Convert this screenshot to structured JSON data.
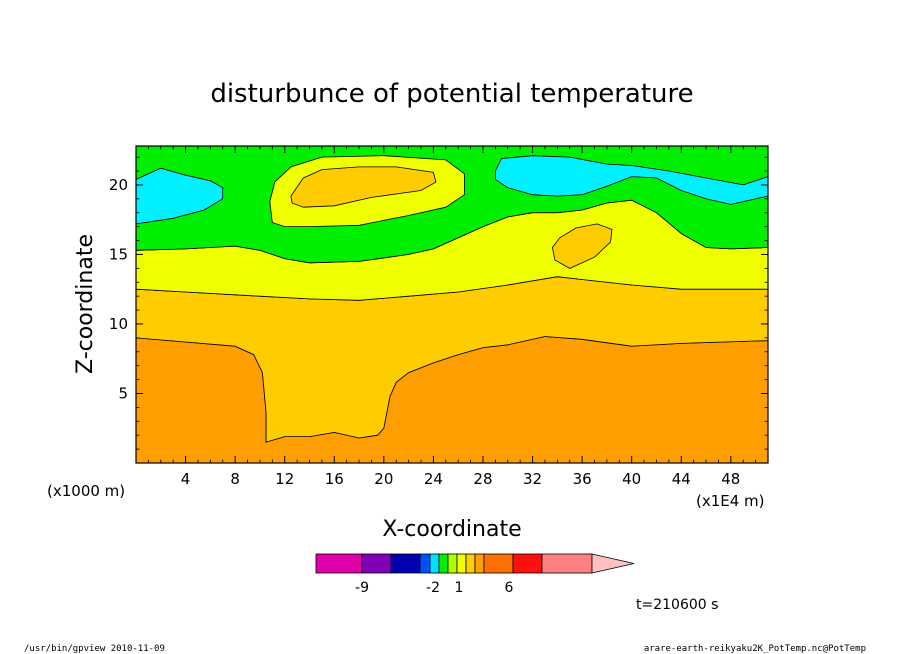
{
  "chart_data": {
    "type": "contour",
    "title": "disturbunce of potential temperature",
    "xlabel": "X-coordinate",
    "ylabel": "Z-coordinate",
    "x_unit": "(x1E4 m)",
    "y_unit": "(x1000 m)",
    "xlim": [
      0,
      51
    ],
    "ylim": [
      0,
      22.8
    ],
    "x_ticks": [
      4,
      8,
      12,
      16,
      20,
      24,
      28,
      32,
      36,
      40,
      44,
      48
    ],
    "y_ticks": [
      5,
      10,
      15,
      20
    ],
    "grid": false,
    "time_label": "t=210600 s",
    "colorbar": {
      "colors": [
        "#e000a8",
        "#8000b8",
        "#0000b0",
        "#0050ff",
        "#00e0ff",
        "#00f000",
        "#b0ff00",
        "#f0ff00",
        "#ffd000",
        "#ffa000",
        "#ff7000",
        "#ff1010",
        "#ff8080",
        "#ffc0c0"
      ],
      "labels": [
        {
          "text": "-9",
          "level": -9
        },
        {
          "text": "-2",
          "level": -2
        },
        {
          "text": "1",
          "level": 1
        },
        {
          "text": "6",
          "level": 6
        }
      ]
    },
    "regions": [
      {
        "name": "bottom-orange",
        "color": "#ff9e00",
        "points": [
          [
            0,
            0
          ],
          [
            51,
            0
          ],
          [
            51,
            8.8
          ],
          [
            44,
            8.6
          ],
          [
            40,
            8.4
          ],
          [
            36,
            8.9
          ],
          [
            33,
            9.1
          ],
          [
            30,
            8.5
          ],
          [
            28,
            8.3
          ],
          [
            26,
            7.8
          ],
          [
            24,
            7.2
          ],
          [
            22,
            6.5
          ],
          [
            21,
            5.8
          ],
          [
            20.5,
            4.8
          ],
          [
            20,
            2.5
          ],
          [
            19.5,
            2.0
          ],
          [
            18,
            1.8
          ],
          [
            16,
            2.2
          ],
          [
            14,
            1.9
          ],
          [
            12,
            1.9
          ],
          [
            10.5,
            1.5
          ],
          [
            10.5,
            3.6
          ],
          [
            10.2,
            6.5
          ],
          [
            9.5,
            7.8
          ],
          [
            8,
            8.4
          ],
          [
            4,
            8.7
          ],
          [
            0,
            9.0
          ]
        ]
      },
      {
        "name": "middle-gold",
        "color": "#ffcc00",
        "points": [
          [
            0,
            9.0
          ],
          [
            4,
            8.7
          ],
          [
            8,
            8.4
          ],
          [
            9.5,
            7.8
          ],
          [
            10.2,
            6.5
          ],
          [
            10.5,
            3.6
          ],
          [
            10.5,
            1.5
          ],
          [
            12,
            1.9
          ],
          [
            14,
            1.9
          ],
          [
            16,
            2.2
          ],
          [
            18,
            1.8
          ],
          [
            19.5,
            2.0
          ],
          [
            20,
            2.5
          ],
          [
            20.5,
            4.8
          ],
          [
            21,
            5.8
          ],
          [
            22,
            6.5
          ],
          [
            24,
            7.2
          ],
          [
            26,
            7.8
          ],
          [
            28,
            8.3
          ],
          [
            30,
            8.5
          ],
          [
            33,
            9.1
          ],
          [
            36,
            8.9
          ],
          [
            40,
            8.4
          ],
          [
            44,
            8.6
          ],
          [
            51,
            8.8
          ],
          [
            51,
            12.5
          ],
          [
            44,
            12.5
          ],
          [
            40,
            12.8
          ],
          [
            36,
            13.2
          ],
          [
            34,
            13.4
          ],
          [
            30,
            12.8
          ],
          [
            26,
            12.3
          ],
          [
            22,
            12.0
          ],
          [
            18,
            11.7
          ],
          [
            14,
            11.8
          ],
          [
            10,
            12.0
          ],
          [
            8,
            12.1
          ],
          [
            4,
            12.3
          ],
          [
            0,
            12.5
          ]
        ]
      },
      {
        "name": "yellow-band",
        "color": "#f0ff00",
        "points": [
          [
            0,
            12.5
          ],
          [
            4,
            12.3
          ],
          [
            8,
            12.1
          ],
          [
            10,
            12.0
          ],
          [
            14,
            11.8
          ],
          [
            18,
            11.7
          ],
          [
            22,
            12.0
          ],
          [
            26,
            12.3
          ],
          [
            30,
            12.8
          ],
          [
            34,
            13.4
          ],
          [
            36,
            13.2
          ],
          [
            40,
            12.8
          ],
          [
            44,
            12.5
          ],
          [
            51,
            12.5
          ],
          [
            51,
            15.5
          ],
          [
            48,
            15.4
          ],
          [
            46,
            15.5
          ],
          [
            44,
            16.5
          ],
          [
            42,
            18.0
          ],
          [
            40,
            18.9
          ],
          [
            38,
            18.7
          ],
          [
            36,
            18.2
          ],
          [
            34,
            18.0
          ],
          [
            32,
            18.0
          ],
          [
            30,
            17.7
          ],
          [
            28,
            17.0
          ],
          [
            26,
            16.2
          ],
          [
            24,
            15.4
          ],
          [
            22,
            15.0
          ],
          [
            18,
            14.5
          ],
          [
            14,
            14.4
          ],
          [
            12,
            14.7
          ],
          [
            10,
            15.3
          ],
          [
            8,
            15.6
          ],
          [
            4,
            15.4
          ],
          [
            0,
            15.3
          ]
        ]
      },
      {
        "name": "green-band",
        "color": "#00ee00",
        "points": [
          [
            0,
            15.3
          ],
          [
            4,
            15.4
          ],
          [
            8,
            15.6
          ],
          [
            10,
            15.3
          ],
          [
            12,
            14.7
          ],
          [
            14,
            14.4
          ],
          [
            18,
            14.5
          ],
          [
            22,
            15.0
          ],
          [
            24,
            15.4
          ],
          [
            26,
            16.2
          ],
          [
            28,
            17.0
          ],
          [
            30,
            17.7
          ],
          [
            32,
            18.0
          ],
          [
            34,
            18.0
          ],
          [
            36,
            18.2
          ],
          [
            38,
            18.7
          ],
          [
            40,
            18.9
          ],
          [
            42,
            18.0
          ],
          [
            44,
            16.5
          ],
          [
            46,
            15.5
          ],
          [
            48,
            15.4
          ],
          [
            51,
            15.5
          ],
          [
            51,
            22.8
          ],
          [
            0,
            22.8
          ]
        ]
      },
      {
        "name": "cyan-left",
        "color": "#00f0ff",
        "points": [
          [
            0,
            17.2
          ],
          [
            3,
            17.6
          ],
          [
            5.5,
            18.2
          ],
          [
            7,
            19.0
          ],
          [
            7,
            19.8
          ],
          [
            6,
            20.3
          ],
          [
            4,
            20.7
          ],
          [
            2,
            21.2
          ],
          [
            0,
            20.4
          ]
        ]
      },
      {
        "name": "cyan-right",
        "color": "#00f0ff",
        "points": [
          [
            29,
            21.0
          ],
          [
            29.5,
            21.9
          ],
          [
            32,
            22.1
          ],
          [
            35,
            22.0
          ],
          [
            38,
            21.5
          ],
          [
            40,
            21.4
          ],
          [
            43,
            21.0
          ],
          [
            46,
            20.5
          ],
          [
            49,
            20.0
          ],
          [
            51,
            20.6
          ],
          [
            51,
            19.2
          ],
          [
            48,
            18.6
          ],
          [
            46,
            19.0
          ],
          [
            44,
            19.6
          ],
          [
            42,
            20.5
          ],
          [
            40,
            20.6
          ],
          [
            38,
            19.9
          ],
          [
            36,
            19.3
          ],
          [
            34,
            19.2
          ],
          [
            32,
            19.3
          ],
          [
            30,
            19.8
          ],
          [
            29,
            20.4
          ]
        ]
      },
      {
        "name": "yellow-top-blob",
        "color": "#f0ff00",
        "points": [
          [
            11,
            17.3
          ],
          [
            10.8,
            18.8
          ],
          [
            11.2,
            20.2
          ],
          [
            12.5,
            21.3
          ],
          [
            15,
            22.0
          ],
          [
            20,
            22.1
          ],
          [
            25,
            21.8
          ],
          [
            26.5,
            20.8
          ],
          [
            26.5,
            19.3
          ],
          [
            25,
            18.4
          ],
          [
            22,
            17.8
          ],
          [
            18,
            17.1
          ],
          [
            14,
            17.0
          ],
          [
            12,
            17.0
          ]
        ]
      },
      {
        "name": "gold-top-blob",
        "color": "#ffcc00",
        "points": [
          [
            12.5,
            19.2
          ],
          [
            13.5,
            20.5
          ],
          [
            15,
            21.1
          ],
          [
            18,
            21.3
          ],
          [
            21,
            21.3
          ],
          [
            24,
            20.9
          ],
          [
            24.2,
            20.2
          ],
          [
            23,
            19.6
          ],
          [
            19,
            19.1
          ],
          [
            16,
            18.5
          ],
          [
            13.5,
            18.4
          ],
          [
            12.6,
            18.7
          ]
        ]
      },
      {
        "name": "gold-blob-right",
        "color": "#ffcc00",
        "points": [
          [
            33.6,
            15.5
          ],
          [
            33.8,
            14.6
          ],
          [
            35,
            14.0
          ],
          [
            37,
            14.8
          ],
          [
            38.3,
            15.9
          ],
          [
            38.4,
            16.8
          ],
          [
            37.2,
            17.2
          ],
          [
            35.5,
            16.9
          ],
          [
            34.2,
            16.2
          ]
        ]
      }
    ]
  },
  "footer": {
    "left": "/usr/bin/gpview  2010-11-09",
    "right": "arare-earth-reikyaku2K_PotTemp.nc@PotTemp"
  }
}
